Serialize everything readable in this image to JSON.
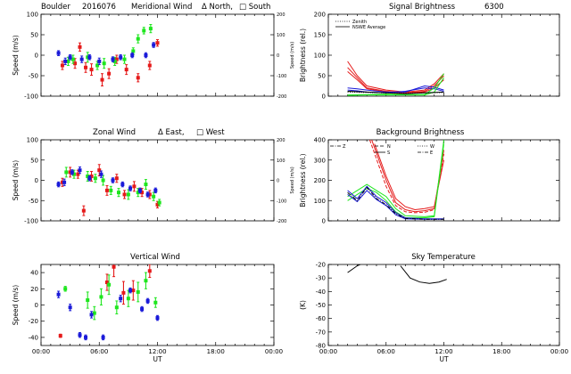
{
  "header": {
    "site": "Boulder",
    "date_code": "2016076"
  },
  "colors": {
    "red": "#e51a1a",
    "green": "#1ee61e",
    "blue": "#1a1ad9",
    "black": "#000000"
  },
  "x_axis": {
    "ticks": [
      0,
      6,
      12,
      18,
      24
    ],
    "tick_labels": [
      "00:00",
      "06:00",
      "12:00",
      "18:00",
      "00:00"
    ],
    "label": "UT"
  },
  "chart_data": [
    {
      "type": "scatter",
      "panel": "meridional_wind",
      "title": "Meridional Wind",
      "title_note_1": "Δ North,",
      "title_note_2": "□ South",
      "ylabel": "Speed (m/s)",
      "ylim": [
        -100,
        100
      ],
      "yticks": [
        -100,
        -50,
        0,
        50,
        100
      ],
      "right_ylabel": "Speed (m/s)",
      "right_ytick_labels": [
        "-200",
        "-100",
        "0",
        "100",
        "200"
      ],
      "xlim": [
        0,
        24
      ],
      "error_bars": true,
      "series": [
        {
          "color_key": "red",
          "x": [
            2.2,
            3.5,
            4.0,
            4.6,
            5.2,
            6.3,
            7.0,
            7.8,
            8.8,
            10.0,
            11.2,
            12.0
          ],
          "y": [
            -25,
            -20,
            20,
            -30,
            -35,
            -60,
            -45,
            -10,
            -35,
            -55,
            -25,
            30
          ],
          "err": [
            10,
            12,
            10,
            12,
            14,
            15,
            12,
            10,
            12,
            10,
            10,
            8
          ]
        },
        {
          "color_key": "green",
          "x": [
            2.8,
            3.3,
            4.8,
            5.8,
            6.5,
            7.6,
            8.6,
            9.5,
            10.0,
            10.6,
            11.3
          ],
          "y": [
            -15,
            -10,
            -5,
            -25,
            -20,
            -15,
            -10,
            10,
            40,
            60,
            65
          ],
          "err": [
            10,
            10,
            12,
            10,
            12,
            10,
            10,
            8,
            10,
            8,
            10
          ]
        },
        {
          "color_key": "blue",
          "x": [
            1.8,
            2.5,
            3.0,
            4.2,
            5.0,
            6.0,
            7.4,
            8.2,
            9.4,
            10.8,
            11.6
          ],
          "y": [
            5,
            -15,
            -5,
            -10,
            -5,
            -15,
            -10,
            -5,
            0,
            0,
            25
          ],
          "err": [
            6,
            8,
            6,
            8,
            6,
            8,
            6,
            6,
            6,
            6,
            6
          ]
        }
      ]
    },
    {
      "type": "line",
      "panel": "signal_brightness",
      "title": "Signal Brightness",
      "title_note": "6300",
      "ylabel": "Brightness (rel.)",
      "ylim": [
        0,
        200
      ],
      "yticks": [
        0,
        50,
        100,
        150,
        200
      ],
      "xlim": [
        0,
        24
      ],
      "legend": [
        "Zenith",
        "NSWE Average"
      ],
      "legend_position": "top-left",
      "series": [
        {
          "color_key": "red",
          "style": "solid",
          "x": [
            2,
            3,
            4,
            6,
            8,
            10,
            11,
            12
          ],
          "y": [
            85,
            50,
            25,
            15,
            10,
            15,
            30,
            55
          ]
        },
        {
          "color_key": "red",
          "style": "solid",
          "x": [
            2,
            3,
            4,
            6,
            8,
            10,
            11,
            12
          ],
          "y": [
            70,
            45,
            20,
            12,
            8,
            12,
            25,
            50
          ]
        },
        {
          "color_key": "red",
          "style": "solid",
          "x": [
            2,
            3,
            4,
            6,
            8,
            10,
            11,
            12
          ],
          "y": [
            60,
            40,
            18,
            10,
            8,
            10,
            20,
            40
          ]
        },
        {
          "color_key": "blue",
          "style": "solid",
          "x": [
            2,
            3,
            4,
            6,
            8,
            10,
            11,
            12
          ],
          "y": [
            20,
            18,
            15,
            10,
            10,
            25,
            22,
            15
          ]
        },
        {
          "color_key": "blue",
          "style": "solid",
          "x": [
            2,
            3,
            4,
            6,
            8,
            10,
            11,
            12
          ],
          "y": [
            15,
            13,
            10,
            8,
            12,
            20,
            18,
            12
          ]
        },
        {
          "color_key": "green",
          "style": "solid",
          "x": [
            2,
            4,
            6,
            8,
            10,
            11,
            12
          ],
          "y": [
            3,
            4,
            5,
            4,
            4,
            20,
            55
          ]
        },
        {
          "color_key": "green",
          "style": "solid",
          "x": [
            2,
            4,
            6,
            8,
            10,
            11,
            12
          ],
          "y": [
            2,
            3,
            3,
            3,
            3,
            10,
            45
          ]
        },
        {
          "color_key": "black",
          "style": "solid",
          "x": [
            2,
            4,
            6,
            8,
            10,
            12
          ],
          "y": [
            12,
            10,
            8,
            6,
            8,
            10
          ]
        },
        {
          "color_key": "black",
          "style": "dotted",
          "x": [
            2,
            4,
            6,
            8,
            10,
            12
          ],
          "y": [
            10,
            9,
            8,
            7,
            8,
            9
          ]
        }
      ]
    },
    {
      "type": "scatter",
      "panel": "zonal_wind",
      "title": "Zonal Wind",
      "title_note_1": "Δ East,",
      "title_note_2": "□ West",
      "ylabel": "Speed (m/s)",
      "ylim": [
        -100,
        100
      ],
      "yticks": [
        -100,
        -50,
        0,
        50,
        100
      ],
      "right_ylabel": "Speed (m/s)",
      "right_ytick_labels": [
        "-200",
        "-100",
        "0",
        "100",
        "200"
      ],
      "xlim": [
        0,
        24
      ],
      "error_bars": true,
      "series": [
        {
          "color_key": "red",
          "x": [
            2.2,
            3.0,
            3.8,
            4.4,
            5.2,
            6.0,
            6.8,
            7.8,
            8.6,
            9.6,
            10.4,
            11.2,
            12.0
          ],
          "y": [
            -5,
            20,
            15,
            -75,
            10,
            25,
            -25,
            5,
            -35,
            -15,
            -30,
            -35,
            -60
          ],
          "err": [
            10,
            12,
            10,
            12,
            12,
            14,
            12,
            10,
            10,
            12,
            10,
            10,
            8
          ]
        },
        {
          "color_key": "green",
          "x": [
            2.6,
            3.4,
            4.8,
            5.6,
            6.4,
            7.2,
            8.0,
            9.0,
            10.0,
            10.8,
            11.6,
            12.2
          ],
          "y": [
            20,
            15,
            10,
            5,
            0,
            -25,
            -30,
            -35,
            -30,
            -10,
            -40,
            -55
          ],
          "err": [
            12,
            10,
            12,
            10,
            12,
            10,
            10,
            12,
            10,
            12,
            10,
            8
          ]
        },
        {
          "color_key": "blue",
          "x": [
            1.8,
            2.4,
            3.2,
            4.0,
            5.0,
            6.2,
            7.4,
            8.4,
            9.2,
            10.2,
            11.0,
            11.8
          ],
          "y": [
            -10,
            -5,
            20,
            25,
            5,
            15,
            0,
            -10,
            -20,
            -25,
            -35,
            -25
          ],
          "err": [
            6,
            8,
            6,
            8,
            6,
            8,
            6,
            6,
            6,
            6,
            6,
            6
          ]
        }
      ]
    },
    {
      "type": "line",
      "panel": "background_brightness",
      "title": "Background Brightness",
      "ylabel": "Brightness (rel.)",
      "ylim": [
        0,
        400
      ],
      "yticks": [
        0,
        100,
        200,
        300,
        400
      ],
      "xlim": [
        0,
        24
      ],
      "legend_items": [
        "Z",
        "N",
        "S",
        "W",
        "E"
      ],
      "legend_position": "top",
      "series": [
        {
          "color_key": "red",
          "style": "solid",
          "x": [
            4.5,
            6,
            7,
            8,
            9,
            10,
            11,
            12
          ],
          "y": [
            400,
            200,
            90,
            55,
            45,
            50,
            60,
            350
          ]
        },
        {
          "color_key": "red",
          "style": "dashed",
          "x": [
            4.3,
            6,
            7,
            8,
            9,
            10,
            11,
            12
          ],
          "y": [
            400,
            170,
            75,
            45,
            40,
            42,
            55,
            330
          ]
        },
        {
          "color_key": "red",
          "style": "solid",
          "x": [
            4.8,
            6,
            7,
            8,
            9,
            10,
            11,
            12
          ],
          "y": [
            380,
            220,
            110,
            70,
            55,
            60,
            70,
            300
          ]
        },
        {
          "color_key": "green",
          "style": "solid",
          "x": [
            2,
            3,
            4,
            5,
            6,
            7,
            8,
            10,
            11,
            12
          ],
          "y": [
            120,
            150,
            180,
            150,
            120,
            60,
            25,
            20,
            25,
            400
          ]
        },
        {
          "color_key": "green",
          "style": "solid",
          "x": [
            2,
            3,
            4,
            5,
            6,
            7,
            8,
            10,
            11,
            12
          ],
          "y": [
            100,
            130,
            160,
            140,
            100,
            45,
            15,
            15,
            20,
            380
          ]
        },
        {
          "color_key": "blue",
          "style": "solid",
          "x": [
            2,
            3,
            4,
            5,
            6,
            7,
            8,
            10,
            12
          ],
          "y": [
            150,
            110,
            170,
            120,
            90,
            40,
            15,
            10,
            10
          ]
        },
        {
          "color_key": "blue",
          "style": "solid",
          "x": [
            2,
            3,
            4,
            5,
            6,
            7,
            8,
            10,
            12
          ],
          "y": [
            130,
            95,
            150,
            105,
            75,
            30,
            10,
            8,
            8
          ]
        },
        {
          "color_key": "black",
          "style": "dashdot",
          "x": [
            2,
            3,
            4,
            5,
            6,
            7,
            8,
            10,
            12
          ],
          "y": [
            140,
            100,
            165,
            110,
            80,
            35,
            12,
            8,
            8
          ]
        }
      ]
    },
    {
      "type": "scatter",
      "panel": "vertical_wind",
      "title": "Vertical Wind",
      "ylabel": "Speed (m/s)",
      "ylim": [
        -50,
        50
      ],
      "yticks": [
        -40,
        -20,
        0,
        20,
        40
      ],
      "xlim": [
        0,
        24
      ],
      "error_bars": true,
      "series": [
        {
          "color_key": "red",
          "x": [
            2.0,
            6.8,
            7.5,
            8.5,
            9.5,
            11.2
          ],
          "y": [
            -38,
            28,
            47,
            15,
            18,
            42
          ],
          "err": [
            2,
            10,
            12,
            14,
            12,
            8
          ]
        },
        {
          "color_key": "green",
          "x": [
            2.5,
            4.8,
            5.5,
            6.2,
            7.0,
            7.8,
            9.0,
            10.0,
            10.8,
            11.8
          ],
          "y": [
            20,
            6,
            -10,
            10,
            25,
            -3,
            8,
            16,
            30,
            3
          ],
          "err": [
            3,
            10,
            8,
            10,
            12,
            8,
            10,
            12,
            10,
            6
          ]
        },
        {
          "color_key": "blue",
          "x": [
            1.8,
            3.0,
            4.0,
            4.6,
            5.2,
            6.4,
            8.2,
            9.2,
            10.4,
            11.0,
            12.0
          ],
          "y": [
            13,
            -3,
            -37,
            -40,
            -12,
            -40,
            8,
            18,
            -5,
            5,
            -16
          ],
          "err": [
            4,
            4,
            3,
            3,
            4,
            3,
            4,
            3,
            3,
            3,
            3
          ]
        }
      ]
    },
    {
      "type": "line",
      "panel": "sky_temperature",
      "title": "Sky Temperature",
      "ylabel": "(K)",
      "ylim": [
        -80,
        -20
      ],
      "yticks": [
        -80,
        -70,
        -60,
        -50,
        -40,
        -30,
        -20
      ],
      "xlim": [
        0,
        24
      ],
      "series": [
        {
          "color_key": "black",
          "style": "solid",
          "x": [
            2,
            3,
            3.6
          ],
          "y": [
            -26,
            -21,
            -19
          ]
        },
        {
          "color_key": "black",
          "style": "solid",
          "x": [
            7.5,
            8.5,
            9.5,
            10.5,
            11.5,
            12.3
          ],
          "y": [
            -21,
            -30,
            -33,
            -34,
            -33,
            -31
          ]
        }
      ]
    }
  ]
}
